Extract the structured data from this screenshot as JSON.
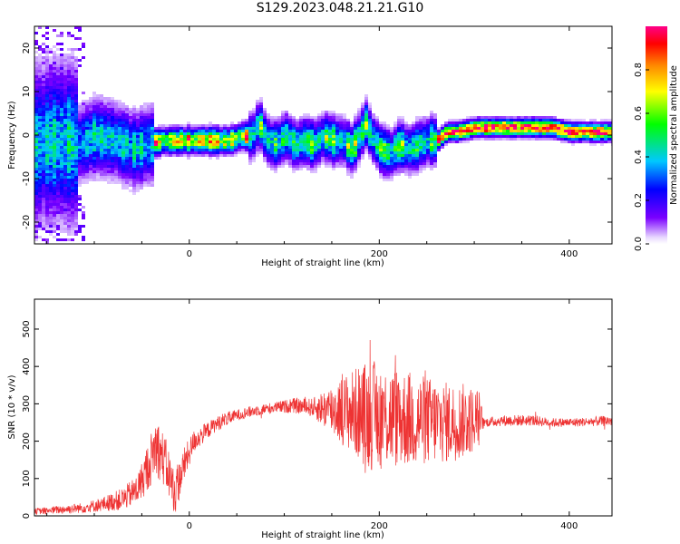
{
  "title": "S129.2023.048.21.21.G10",
  "chart_data": [
    {
      "type": "heatmap",
      "xlabel": "Height of straight line (km)",
      "ylabel": "Frequency (Hz)",
      "xlim": [
        -163,
        445
      ],
      "ylim": [
        -25,
        25
      ],
      "x_ticks": [
        0,
        200,
        400
      ],
      "y_ticks": [
        -20,
        -10,
        0,
        10,
        20
      ],
      "colorbar": {
        "label": "Normalized spectral amplitude",
        "ticks": [
          "0.0",
          "0.2",
          "0.4",
          "0.6",
          "0.8"
        ],
        "colormap": "rainbow (white→violet→blue→cyan→green→yellow→orange→red→magenta)",
        "range": [
          0,
          1
        ]
      },
      "ridge": {
        "x": [
          -160,
          -140,
          -120,
          -100,
          -80,
          -60,
          -45,
          -30,
          -15,
          0,
          20,
          40,
          55,
          65,
          72,
          80,
          90,
          100,
          110,
          120,
          130,
          140,
          150,
          160,
          170,
          180,
          185,
          190,
          200,
          210,
          220,
          230,
          240,
          250,
          260,
          270,
          280,
          300,
          340,
          380,
          400,
          420,
          445
        ],
        "frequency": [
          -2,
          -1,
          -2,
          0,
          -1,
          -3,
          -2,
          -1,
          -1,
          -1,
          -1,
          -1,
          0,
          0,
          3,
          -1,
          -2,
          0,
          -2,
          -1,
          -2,
          0,
          -1,
          -1,
          -3,
          1,
          3,
          0,
          -3,
          -4,
          -2,
          -3,
          -2,
          -1,
          -1,
          1,
          1,
          2,
          2,
          2,
          1,
          1,
          1
        ]
      }
    },
    {
      "type": "line",
      "xlabel": "Height of straight line (km)",
      "ylabel": "SNR (10 * v/v)",
      "xlim": [
        -163,
        445
      ],
      "ylim": [
        0,
        580
      ],
      "x_ticks": [
        0,
        200,
        400
      ],
      "y_ticks": [
        0,
        100,
        200,
        300,
        400,
        500
      ],
      "color": "#ee3333",
      "series": [
        {
          "x": [
            -163,
            -150,
            -130,
            -110,
            -90,
            -70,
            -55,
            -45,
            -35,
            -25,
            -15,
            -5,
            5,
            15,
            25,
            35,
            50,
            70,
            90,
            110,
            130,
            150,
            170,
            190,
            210,
            230,
            250,
            270,
            290,
            305,
            310,
            330,
            360,
            380,
            400,
            420,
            445
          ],
          "mean": [
            12,
            14,
            18,
            22,
            32,
            45,
            70,
            120,
            190,
            140,
            60,
            140,
            200,
            220,
            240,
            255,
            270,
            282,
            290,
            295,
            290,
            285,
            280,
            270,
            265,
            260,
            255,
            250,
            255,
            260,
            250,
            255,
            256,
            250,
            250,
            252,
            255
          ],
          "spread": [
            8,
            10,
            12,
            14,
            20,
            30,
            40,
            60,
            80,
            70,
            60,
            45,
            30,
            25,
            20,
            20,
            15,
            15,
            15,
            20,
            25,
            70,
            110,
            150,
            140,
            130,
            120,
            110,
            100,
            80,
            12,
            15,
            15,
            12,
            12,
            12,
            15
          ]
        }
      ]
    }
  ]
}
